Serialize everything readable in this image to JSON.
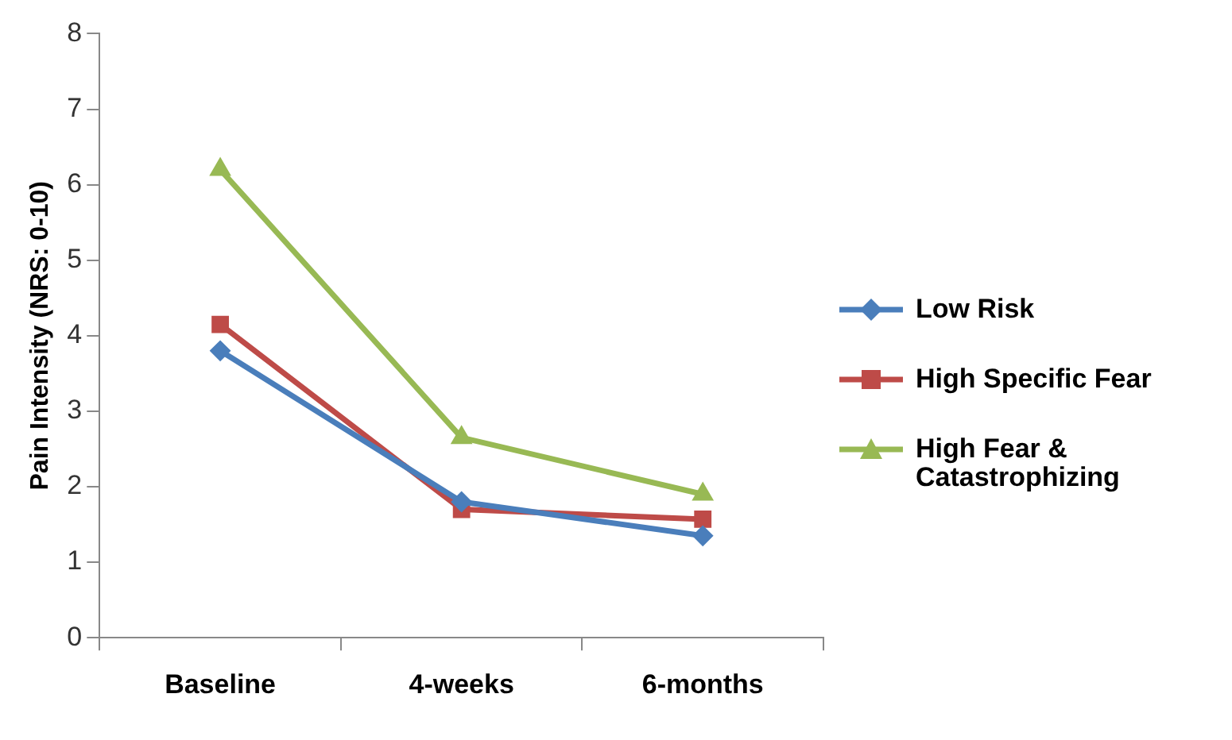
{
  "chart_data": {
    "type": "line",
    "ylabel": "Pain Intensity (NRS: 0-10)",
    "categories": [
      "Baseline",
      "4-weeks",
      "6-months"
    ],
    "series": [
      {
        "name": "Low Risk",
        "color": "#4a7ebb",
        "marker": "diamond",
        "values": [
          3.8,
          1.8,
          1.35
        ]
      },
      {
        "name": "High Specific Fear",
        "color": "#be4b48",
        "marker": "square",
        "values": [
          4.15,
          1.7,
          1.57
        ]
      },
      {
        "name": "High Fear & Catastrophizing",
        "color": "#98b954",
        "marker": "triangle",
        "values": [
          6.2,
          2.65,
          1.9
        ]
      }
    ],
    "ylim": [
      0,
      8
    ],
    "yticks": [
      0,
      1,
      2,
      3,
      4,
      5,
      6,
      7,
      8
    ],
    "grid": false,
    "legend": "right",
    "line_style": "solid"
  }
}
